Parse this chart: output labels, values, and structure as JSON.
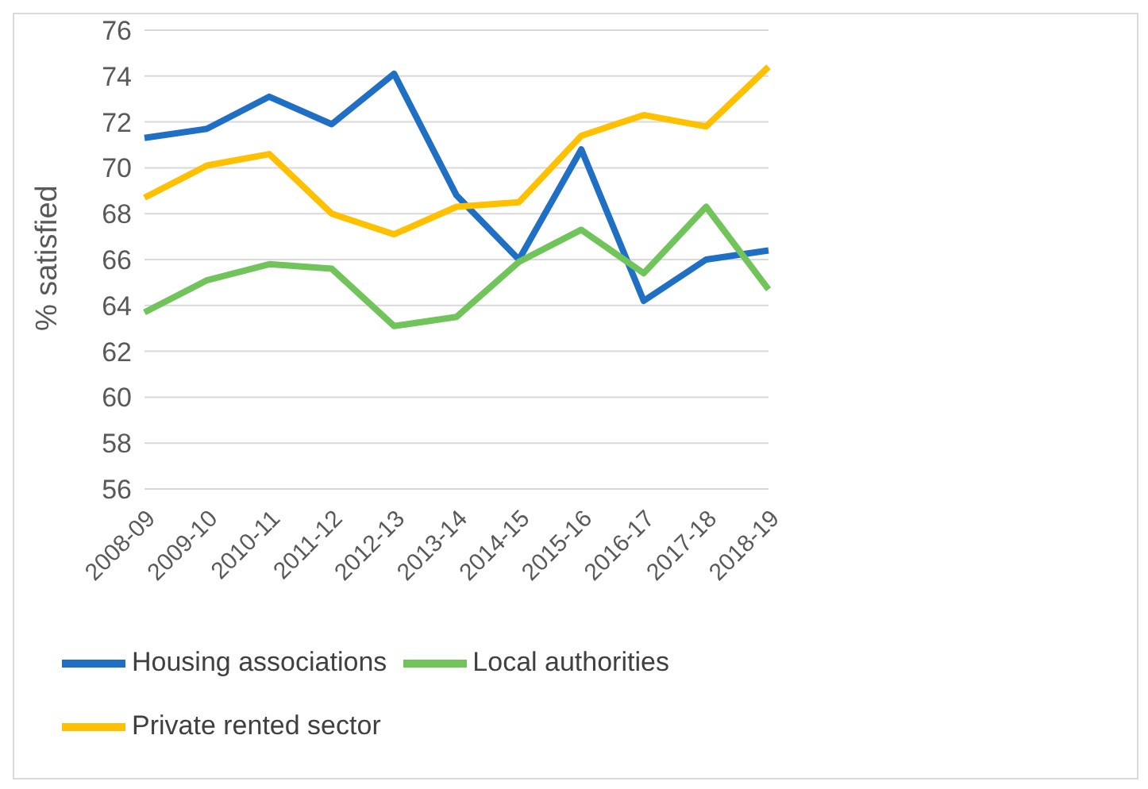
{
  "chart_data": {
    "type": "line",
    "ylabel": "% satisfied",
    "categories": [
      "2008-09",
      "2009-10",
      "2010-11",
      "2011-12",
      "2012-13",
      "2013-14",
      "2014-15",
      "2015-16",
      "2016-17",
      "2017-18",
      "2018-19"
    ],
    "series": [
      {
        "name": "Housing associations",
        "color": "#1f6fc5",
        "values": [
          71.3,
          71.7,
          73.1,
          71.9,
          74.1,
          68.8,
          66.0,
          70.8,
          64.2,
          66.0,
          66.4
        ]
      },
      {
        "name": "Local authorities",
        "color": "#70c45a",
        "values": [
          63.7,
          65.1,
          65.8,
          65.6,
          63.1,
          63.5,
          65.9,
          67.3,
          65.4,
          68.3,
          64.7
        ]
      },
      {
        "name": "Private rented sector",
        "color": "#ffc000",
        "values": [
          68.7,
          70.1,
          70.6,
          68.0,
          67.1,
          68.3,
          68.5,
          71.4,
          72.3,
          71.8,
          74.4
        ]
      }
    ],
    "ylim": [
      56,
      76
    ],
    "yticks": [
      56,
      58,
      60,
      62,
      64,
      66,
      68,
      70,
      72,
      74,
      76
    ],
    "grid": "y",
    "legend": "bottom",
    "marker": "none",
    "line_style": "solid"
  }
}
